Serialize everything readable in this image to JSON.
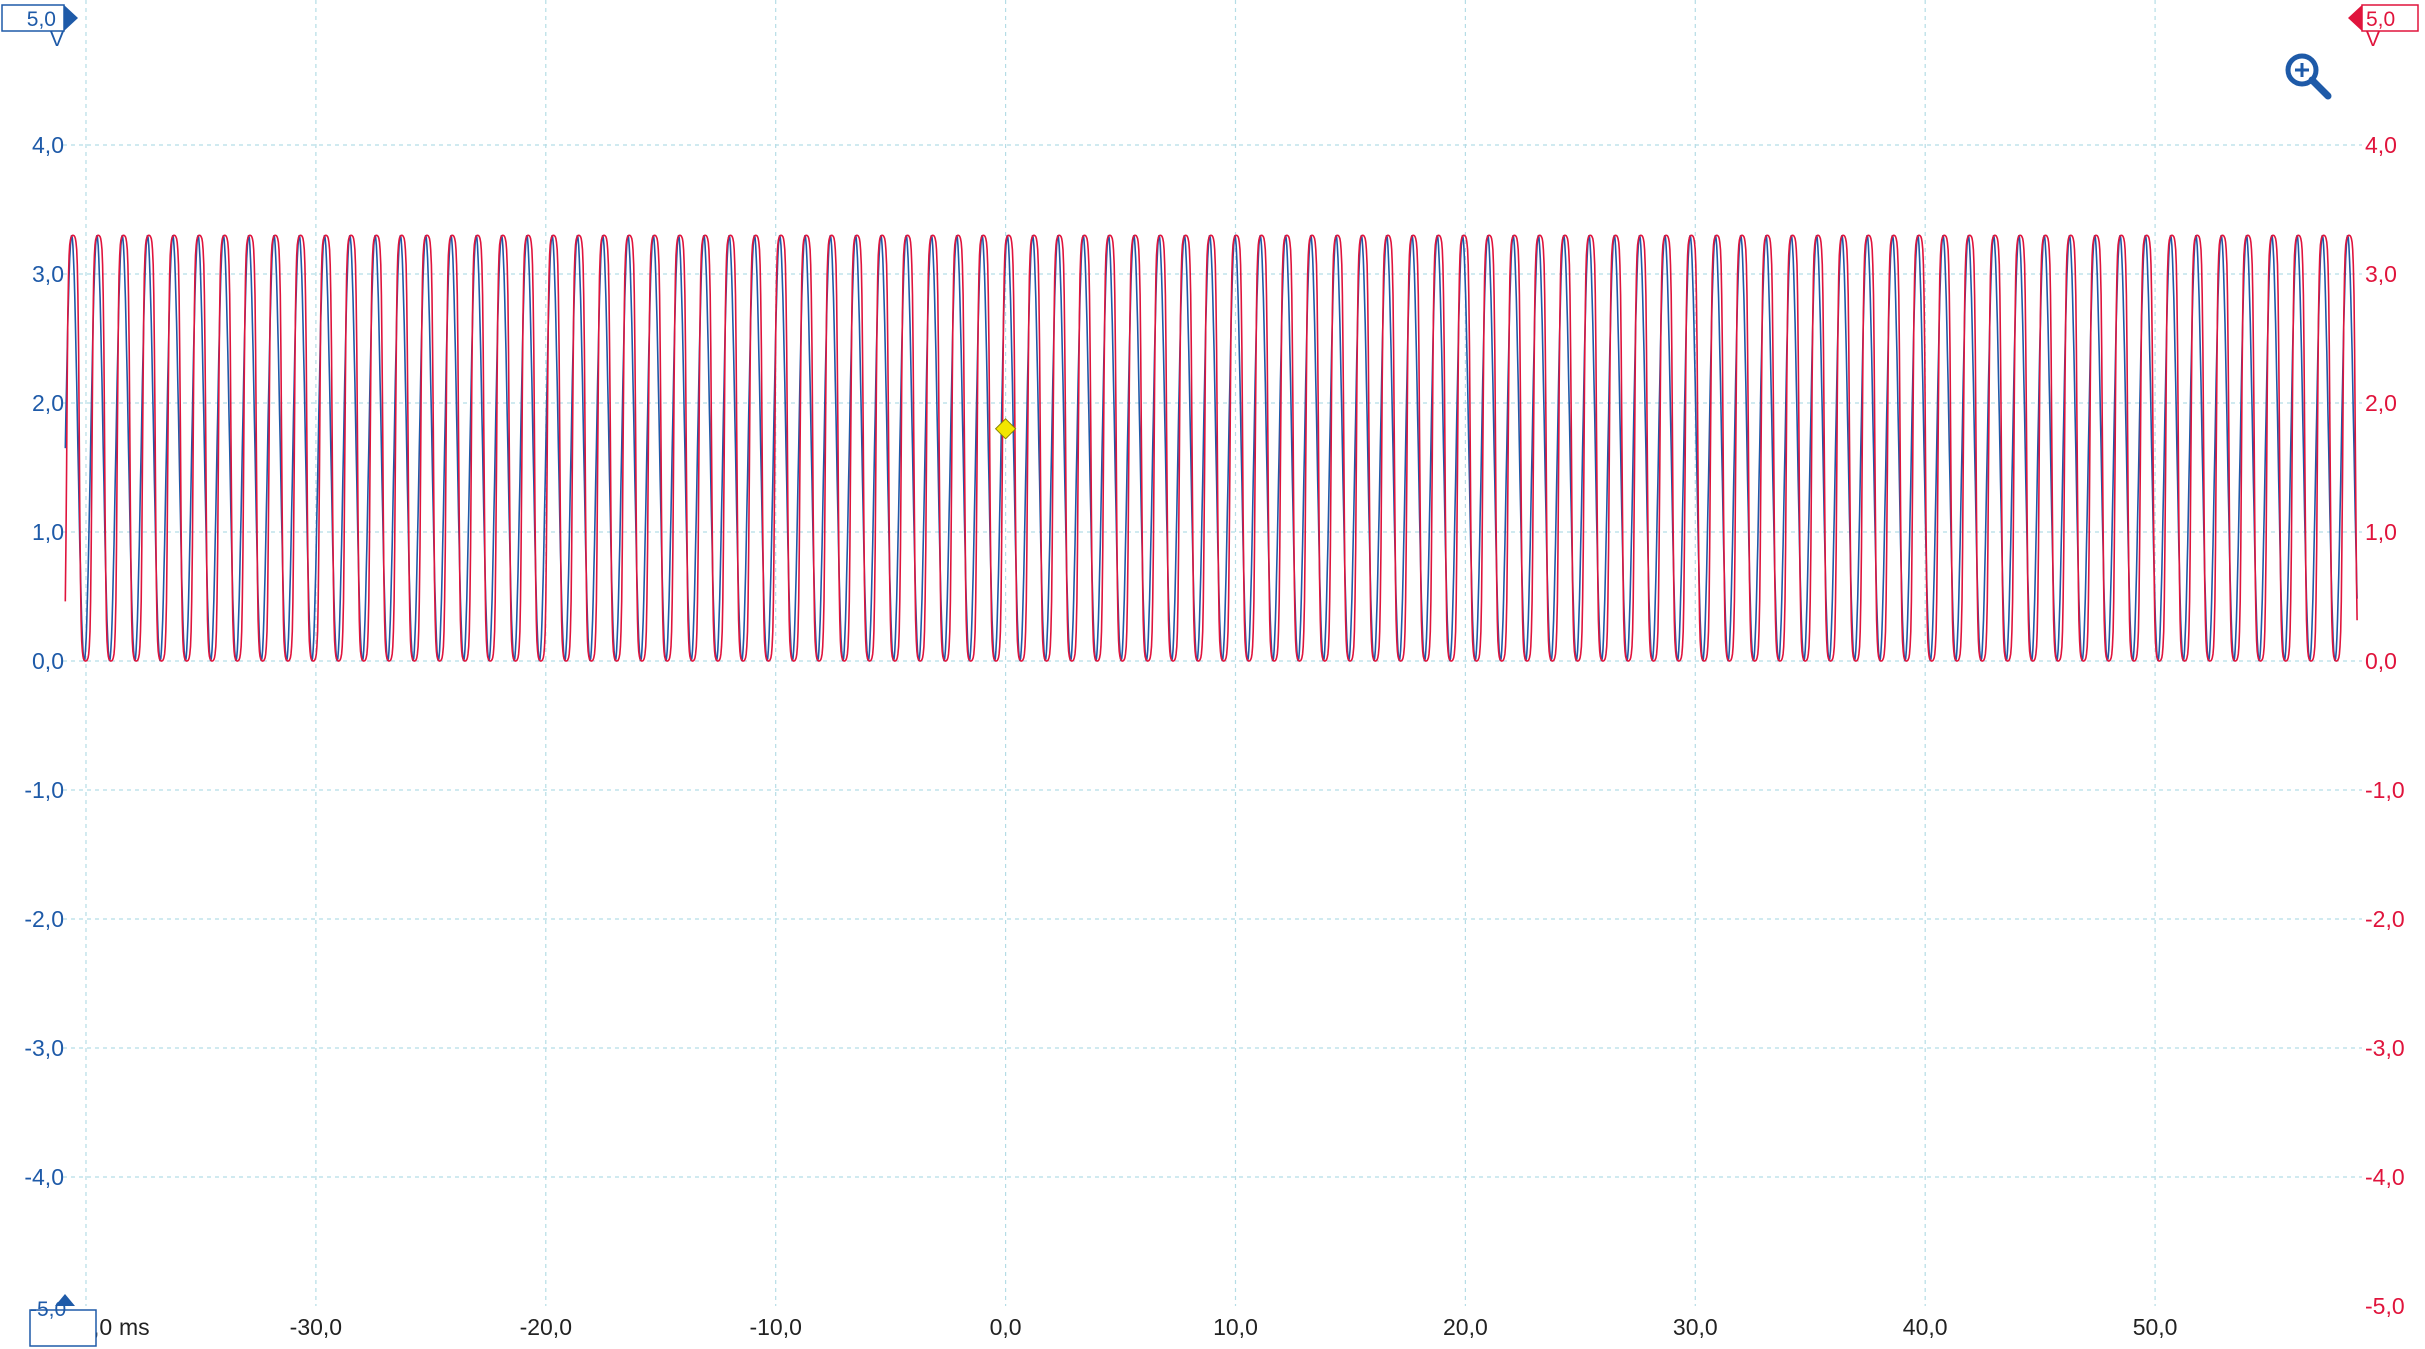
{
  "chart_data": {
    "type": "line",
    "title": "",
    "xlabel": "ms",
    "xlim": [
      -41.0,
      59.0
    ],
    "x_ticks": [
      "-40,0",
      "-30,0",
      "-20,0",
      "-10,0",
      "0,0",
      "10,0",
      "20,0",
      "30,0",
      "40,0",
      "50,0"
    ],
    "x_tick_values": [
      -40,
      -30,
      -20,
      -10,
      0,
      10,
      20,
      30,
      40,
      50
    ],
    "x_unit": "ms",
    "ylim_left": [
      -5.0,
      5.0
    ],
    "ylim_right": [
      -5.0,
      5.0
    ],
    "y_ticks_left": [
      "4,0",
      "3,0",
      "2,0",
      "1,0",
      "0,0",
      "-1,0",
      "-2,0",
      "-3,0",
      "-4,0"
    ],
    "y_ticks_right": [
      "4,0",
      "3,0",
      "2,0",
      "1,0",
      "0,0",
      "-1,0",
      "-2,0",
      "-3,0",
      "-4,0"
    ],
    "y_tick_values": [
      4,
      3,
      2,
      1,
      0,
      -1,
      -2,
      -3,
      -4
    ],
    "y_unit_left": "V",
    "y_unit_right": "V",
    "left_top_marker": "5,0",
    "left_bottom_marker": "-5,0",
    "right_top_marker": "5,0",
    "right_bottom_label": "-5,0",
    "grid": true,
    "trigger": {
      "time_ms": 0.0,
      "level_v": 1.8,
      "color": "#f2e600"
    },
    "series": [
      {
        "channel": "A",
        "color": "#1e5aa8",
        "waveform": "sine",
        "period_ms": 1.1,
        "low_v": 0.0,
        "high_v": 3.3,
        "x_start": -40.9,
        "x_end": 58.8
      },
      {
        "channel": "B",
        "color": "#e0143c",
        "waveform": "rounded-square",
        "period_ms": 1.1,
        "low_v": 0.0,
        "high_v": 3.3,
        "x_start": -40.9,
        "x_end": 58.8
      }
    ]
  },
  "colors": {
    "channel_a": "#1e5aa8",
    "channel_b": "#e0143c",
    "grid": "#b5dde6",
    "x_labels": "#222222"
  },
  "icons": {
    "zoom": "zoom-in-icon"
  }
}
